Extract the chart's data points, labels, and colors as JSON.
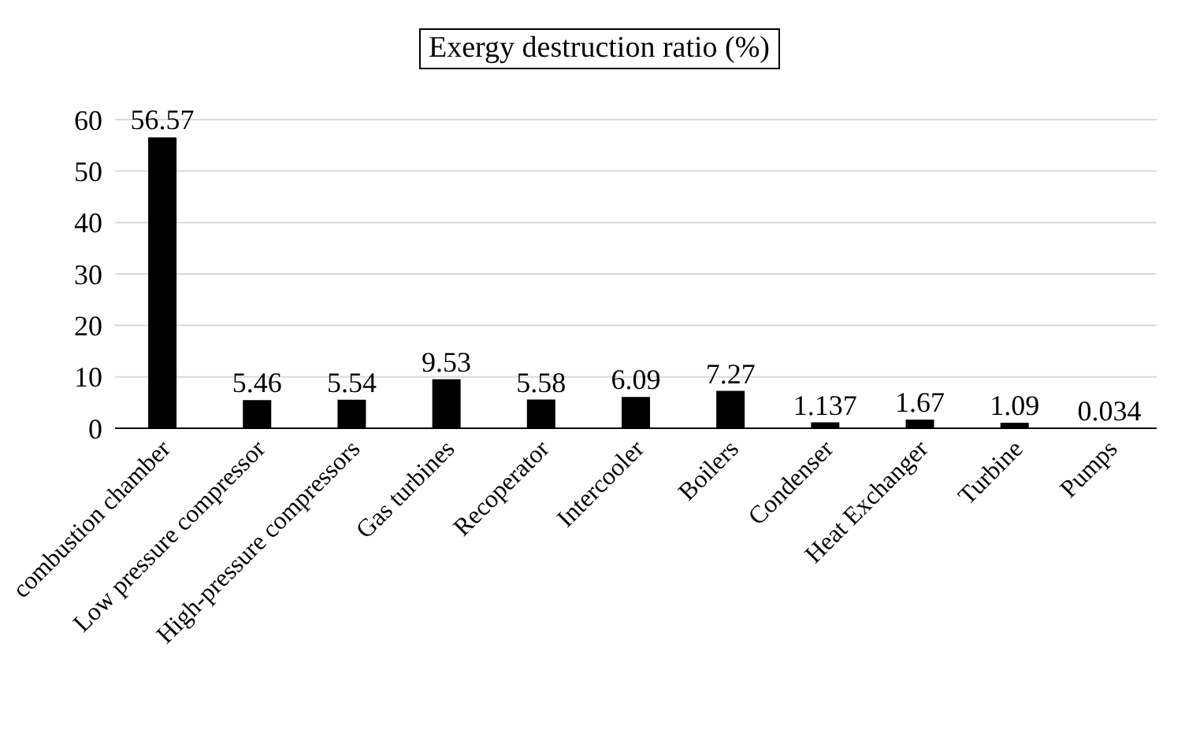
{
  "chart_data": {
    "type": "bar",
    "title": "Exergy destruction ratio (%)",
    "categories": [
      "combustion chamber",
      "Low pressure compressor",
      "High-pressure compressors",
      "Gas turbines",
      "Recoperator",
      "Intercooler",
      "Boilers",
      "Condenser",
      "Heat Exchanger",
      "Turbine",
      "Pumps"
    ],
    "values": [
      56.57,
      5.46,
      5.54,
      9.53,
      5.58,
      6.09,
      7.27,
      1.137,
      1.67,
      1.09,
      0.034
    ],
    "color": "#000000",
    "ylim": [
      0,
      60
    ],
    "yticks": [
      0,
      10,
      20,
      30,
      40,
      50,
      60
    ],
    "grid": "y",
    "data_labels": true,
    "legend": false
  }
}
